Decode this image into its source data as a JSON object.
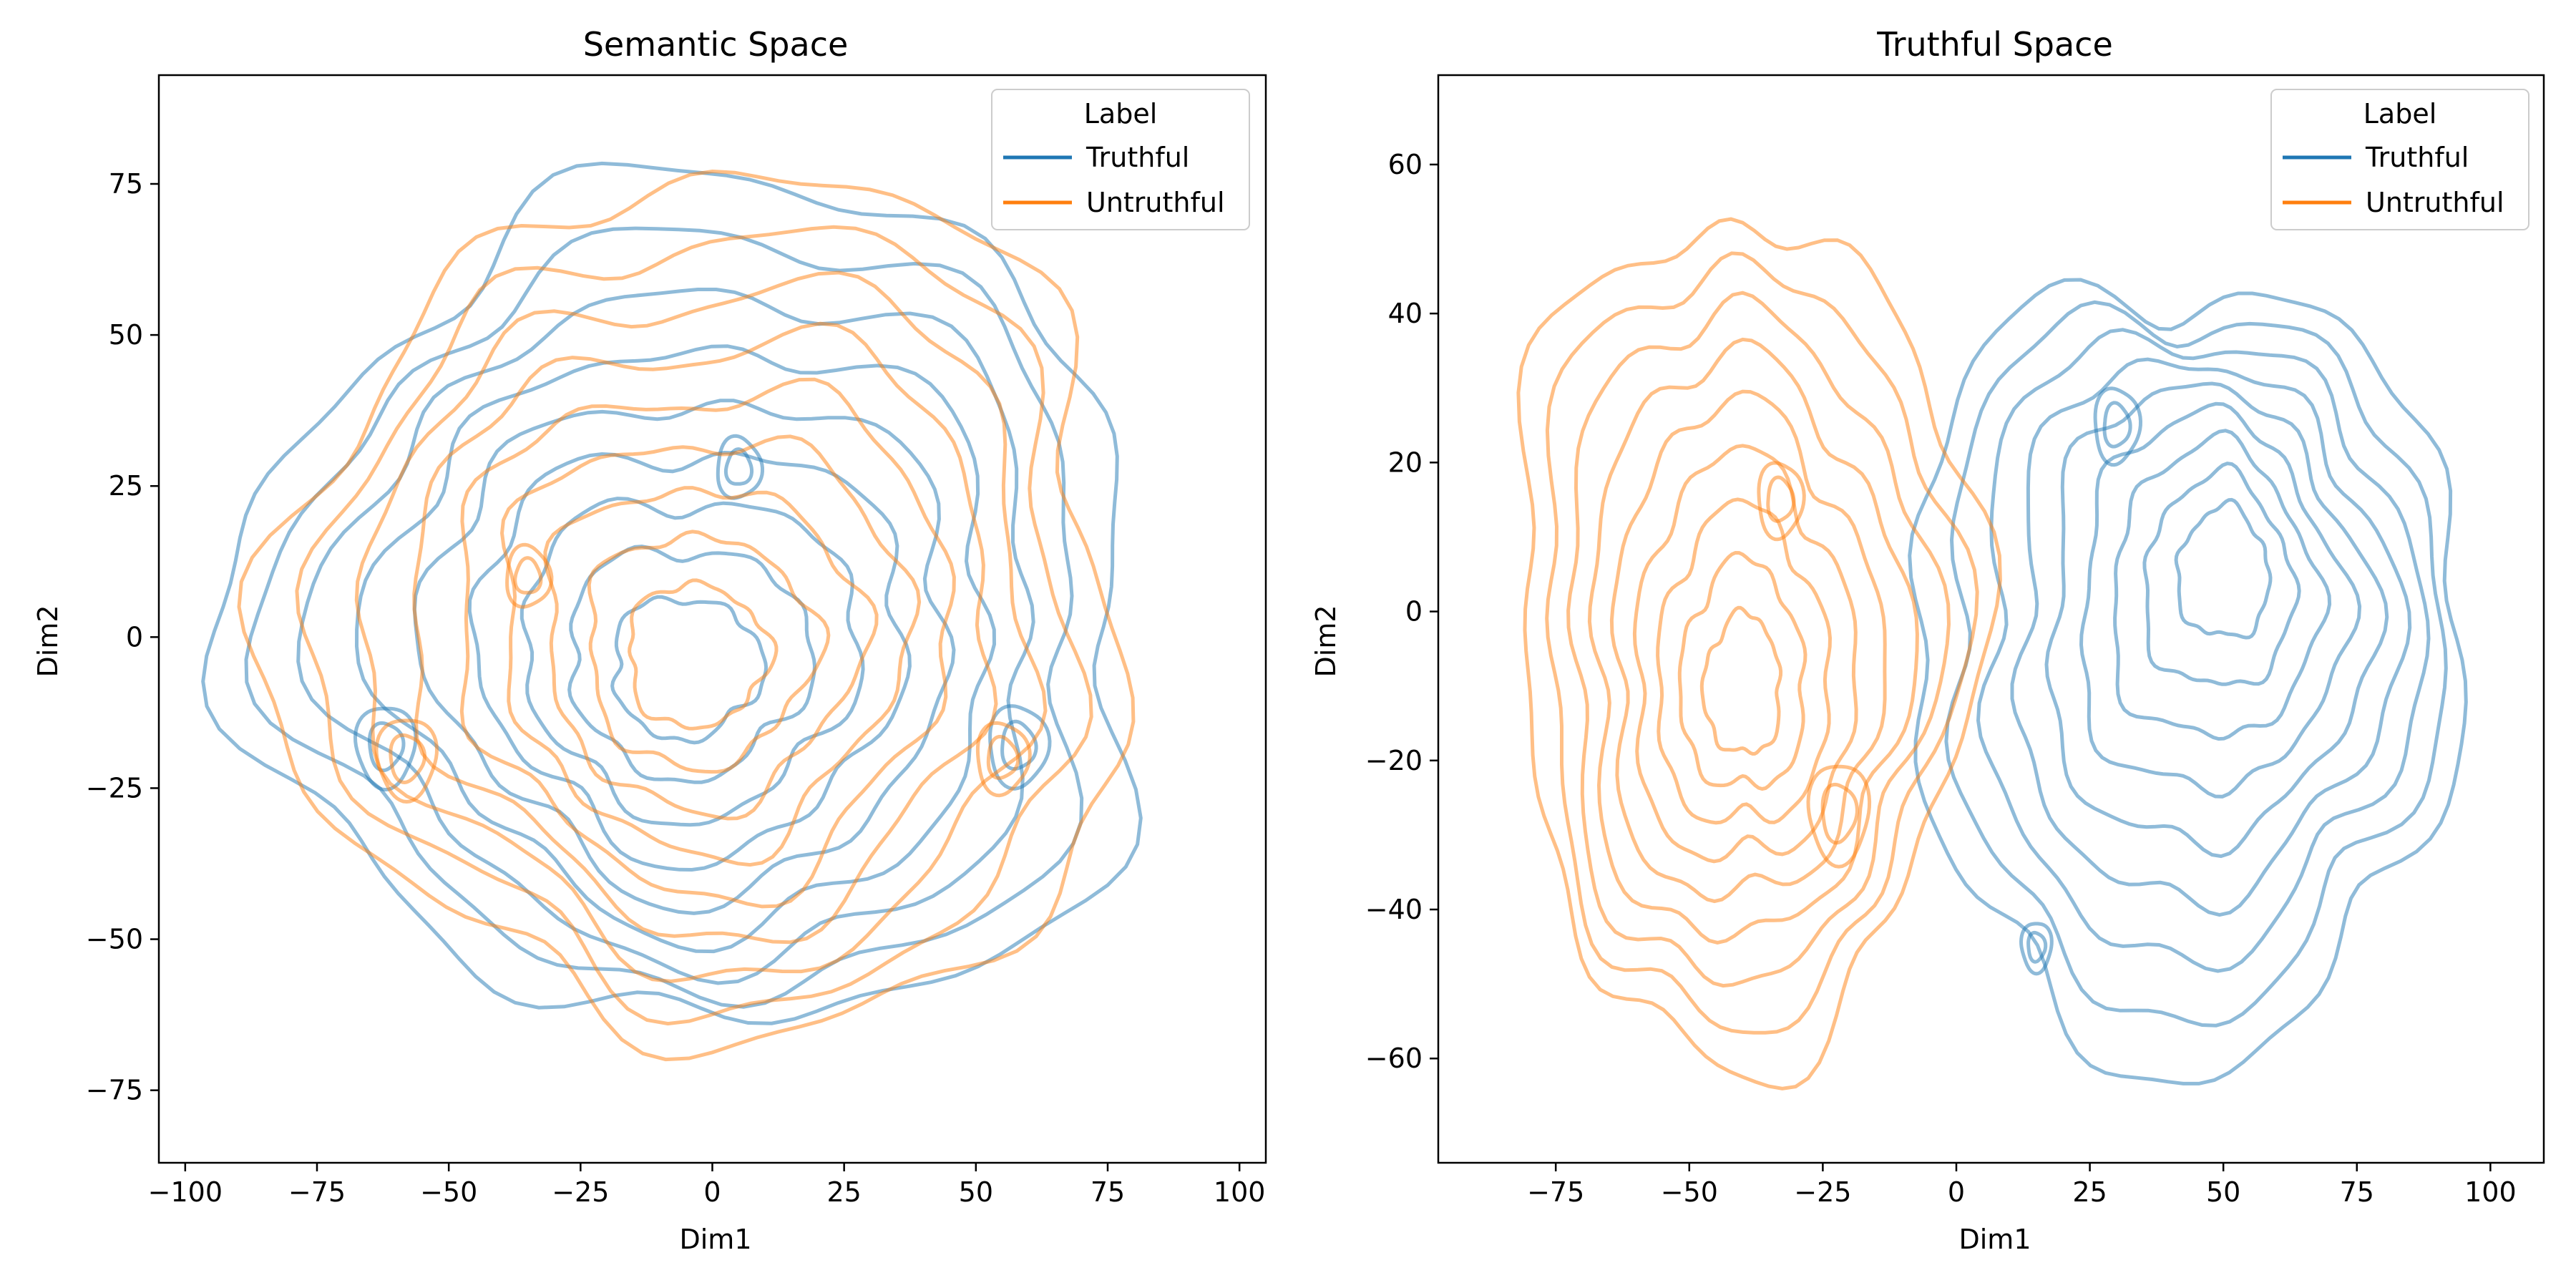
{
  "colors": {
    "truthful": "#1f77b4",
    "untruthful": "#ff7f0e"
  },
  "chart_data": [
    {
      "type": "kde_contour",
      "title": "Semantic Space",
      "xlabel": "Dim1",
      "ylabel": "Dim2",
      "xlim": [
        -105,
        105
      ],
      "ylim": [
        -87,
        93
      ],
      "xticks": [
        -100,
        -75,
        -50,
        -25,
        0,
        25,
        50,
        75,
        100
      ],
      "yticks": [
        -75,
        -50,
        -25,
        0,
        25,
        50,
        75
      ],
      "xtick_labels": [
        "−100",
        "−75",
        "−50",
        "−25",
        "0",
        "25",
        "50",
        "75",
        "100"
      ],
      "ytick_labels": [
        "−75",
        "−50",
        "−25",
        "0",
        "25",
        "50",
        "75"
      ],
      "grid": false,
      "legend": {
        "title": "Label",
        "position": "top-right",
        "entries": [
          "Truthful",
          "Untruthful"
        ]
      },
      "series": [
        {
          "name": "Truthful",
          "levels": 9,
          "x_range": [
            -87,
            83
          ],
          "y_range": [
            -65,
            75
          ],
          "modes": [
            [
              -5,
              -5,
              1.0
            ],
            [
              -62,
              -18,
              0.8
            ],
            [
              58,
              -18,
              0.8
            ],
            [
              5,
              28,
              0.6
            ]
          ]
        },
        {
          "name": "Untruthful",
          "levels": 9,
          "x_range": [
            -80,
            80
          ],
          "y_range": [
            -66,
            76
          ],
          "modes": [
            [
              -3,
              -3,
              1.0
            ],
            [
              -58,
              -20,
              0.8
            ],
            [
              55,
              -20,
              0.7
            ],
            [
              -35,
              10,
              0.6
            ]
          ]
        }
      ]
    },
    {
      "type": "kde_contour",
      "title": "Truthful Space",
      "xlabel": "Dim1",
      "ylabel": "Dim2",
      "xlim": [
        -97,
        110
      ],
      "ylim": [
        -74,
        72
      ],
      "xticks": [
        -75,
        -50,
        -25,
        0,
        25,
        50,
        75,
        100
      ],
      "yticks": [
        -60,
        -40,
        -20,
        0,
        20,
        40,
        60
      ],
      "xtick_labels": [
        "−75",
        "−50",
        "−25",
        "0",
        "25",
        "50",
        "75",
        "100"
      ],
      "ytick_labels": [
        "−60",
        "−40",
        "−20",
        "0",
        "20",
        "40",
        "60"
      ],
      "grid": false,
      "legend": {
        "title": "Label",
        "position": "top-right",
        "entries": [
          "Truthful",
          "Untruthful"
        ]
      },
      "series": [
        {
          "name": "Truthful",
          "levels": 9,
          "x_range": [
            -9,
            94
          ],
          "y_range": [
            -59,
            46
          ],
          "modes": [
            [
              50,
              5,
              1.0
            ],
            [
              15,
              -45,
              0.4
            ],
            [
              30,
              25,
              0.6
            ]
          ]
        },
        {
          "name": "Untruthful",
          "levels": 9,
          "x_range": [
            -83,
            3
          ],
          "y_range": [
            -59,
            54
          ],
          "modes": [
            [
              -40,
              -10,
              1.0
            ],
            [
              -22,
              -27,
              0.8
            ],
            [
              -33,
              15,
              0.6
            ]
          ]
        }
      ]
    }
  ]
}
